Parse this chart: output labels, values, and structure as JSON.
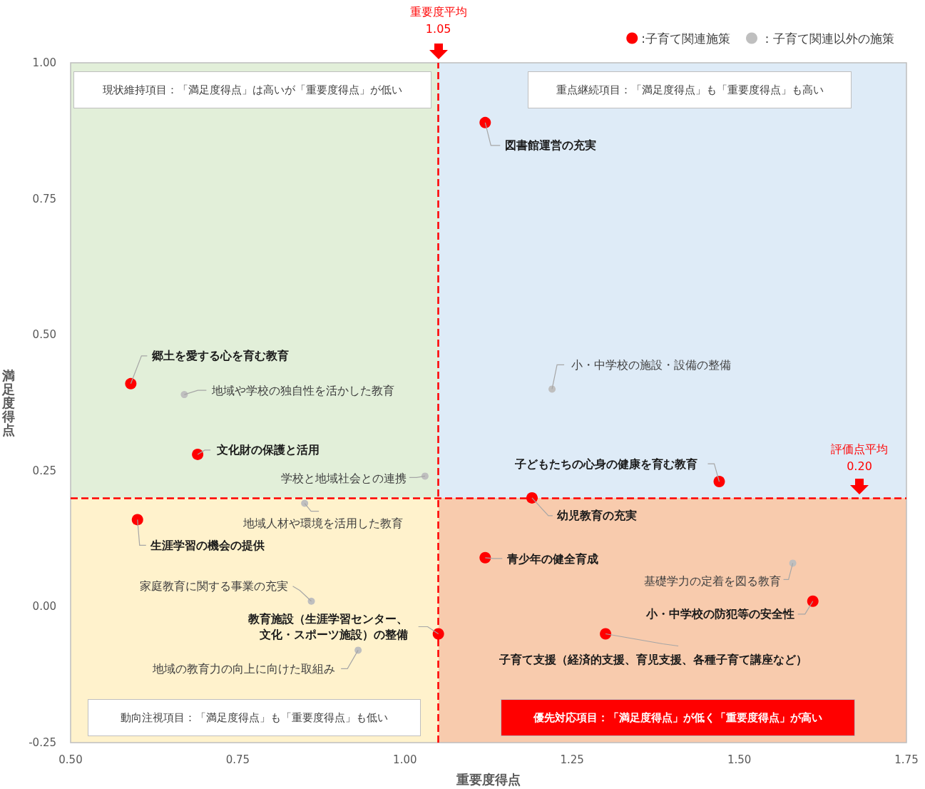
{
  "chart_data": {
    "type": "scatter",
    "xlabel": "重要度得点",
    "ylabel": "満足度得点",
    "xlim": [
      0.5,
      1.75
    ],
    "ylim": [
      -0.25,
      1.0
    ],
    "xticks": [
      {
        "value": 0.5,
        "label": "0.50"
      },
      {
        "value": 0.75,
        "label": "0.75"
      },
      {
        "value": 1.0,
        "label": "1.00"
      },
      {
        "value": 1.25,
        "label": "1.25"
      },
      {
        "value": 1.5,
        "label": "1.50"
      },
      {
        "value": 1.75,
        "label": "1.75"
      }
    ],
    "yticks": [
      {
        "value": -0.25,
        "label": "-0.25"
      },
      {
        "value": 0.0,
        "label": "0.00"
      },
      {
        "value": 0.25,
        "label": "0.25"
      },
      {
        "value": 0.5,
        "label": "0.50"
      },
      {
        "value": 0.75,
        "label": "0.75"
      },
      {
        "value": 1.0,
        "label": "1.00"
      }
    ],
    "grid": false,
    "legend": "top right",
    "marker": "circle",
    "series": [
      {
        "name": ":子育て関連施策",
        "color": "#ff0000",
        "x": [
          1.12,
          0.59,
          0.69,
          1.47,
          1.19,
          0.6,
          1.12,
          1.61,
          1.3,
          1.05
        ],
        "values": [
          0.89,
          0.41,
          0.28,
          0.23,
          0.2,
          0.16,
          0.09,
          0.01,
          -0.05,
          -0.05
        ]
      },
      {
        "name": "：子育て関連以外の施策",
        "color": "#bfbfbf",
        "x": [
          1.22,
          0.67,
          1.03,
          0.85,
          1.58,
          0.86,
          0.93
        ],
        "values": [
          0.4,
          0.39,
          0.24,
          0.19,
          0.08,
          0.01,
          -0.08
        ]
      }
    ],
    "ref_lines": [
      {
        "axis": "x",
        "value": 1.05,
        "label": "重要度平均\n1.05",
        "color": "#ff0000",
        "line_style": "dashed"
      },
      {
        "axis": "y",
        "value": 0.2,
        "label": "評価点平均\n0.20",
        "color": "#ff0000",
        "line_style": "dashed"
      }
    ],
    "annotations": [
      {
        "text": "図書館運営の充実",
        "x": 1.12,
        "y": 0.89
      },
      {
        "text": "郷土を愛する心を育む教育",
        "x": 0.59,
        "y": 0.41
      },
      {
        "text": "文化財の保護と活用",
        "x": 0.69,
        "y": 0.28
      },
      {
        "text": "子どもたちの心身の健康を育む教育",
        "x": 1.47,
        "y": 0.23
      },
      {
        "text": "幼児教育の充実",
        "x": 1.19,
        "y": 0.2
      },
      {
        "text": "生涯学習の機会の提供",
        "x": 0.6,
        "y": 0.16
      },
      {
        "text": "青少年の健全育成",
        "x": 1.12,
        "y": 0.09
      },
      {
        "text": "小・中学校の防犯等の安全性",
        "x": 1.61,
        "y": 0.01
      },
      {
        "text": "子育て支援（経済的支援、育児支援、各種子育て講座など）",
        "x": 1.3,
        "y": -0.05
      },
      {
        "text": "教育施設（生涯学習センター、文化・スポーツ施設）の整備",
        "x": 1.05,
        "y": -0.05
      },
      {
        "text": "小・中学校の施設・設備の整備",
        "x": 1.22,
        "y": 0.4
      },
      {
        "text": "地域や学校の独自性を活かした教育",
        "x": 0.67,
        "y": 0.39
      },
      {
        "text": "学校と地域社会との連携",
        "x": 1.03,
        "y": 0.24
      },
      {
        "text": "地域人材や環境を活用した教育",
        "x": 0.85,
        "y": 0.19
      },
      {
        "text": "基礎学力の定着を図る教育",
        "x": 1.58,
        "y": 0.08
      },
      {
        "text": "家庭教育に関する事業の充実",
        "x": 0.86,
        "y": 0.01
      },
      {
        "text": "地域の教育力の向上に向けた取組み",
        "x": 0.93,
        "y": -0.08
      },
      "現状維持項目：「満足度得点」は高いが「重要度得点」が低い",
      "重点継続項目：「満足度得点」も「重要度得点」も高い",
      "動向注視項目：「満足度得点」も「重要度得点」も低い",
      "優先対応項目：「満足度得点」が低く「重要度得点」が高い"
    ]
  }
}
